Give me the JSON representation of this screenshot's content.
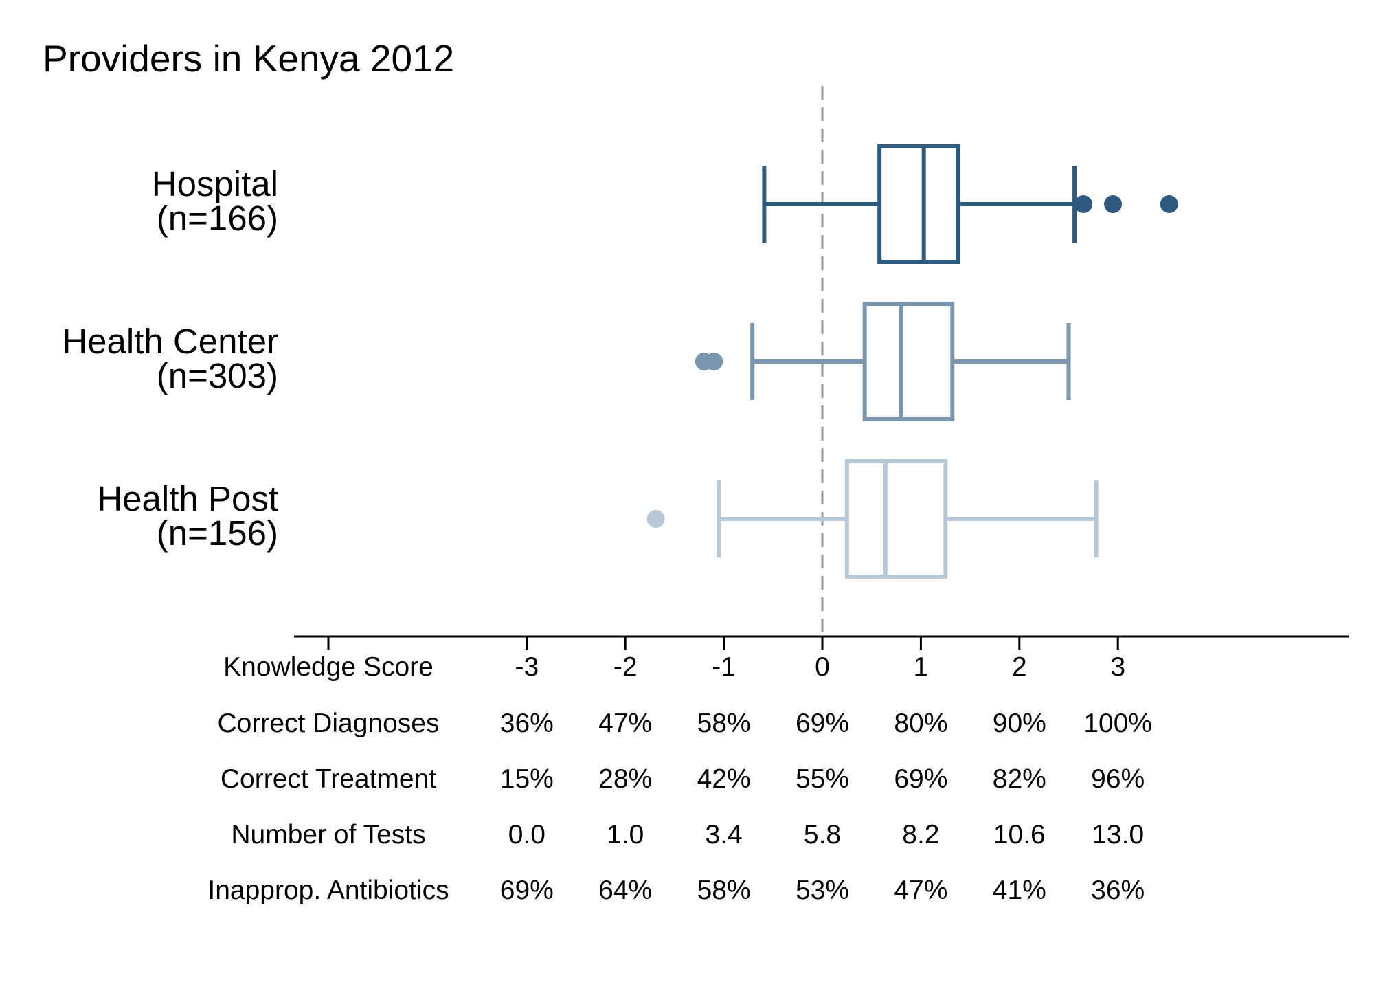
{
  "chart_data": {
    "type": "box",
    "title": "Providers in Kenya 2012",
    "xlim": [
      -5,
      5.4
    ],
    "reference_line": 0,
    "categories": [
      {
        "name": "Hospital",
        "n_label": "(n=166)",
        "color": "#2f5a80",
        "whisker_low": -0.59,
        "q1": 0.58,
        "median": 1.03,
        "q3": 1.38,
        "whisker_high": 2.56,
        "outliers": [
          2.65,
          2.95,
          3.52
        ]
      },
      {
        "name": "Health Center",
        "n_label": "(n=303)",
        "color": "#7a95ae",
        "whisker_low": -0.71,
        "q1": 0.43,
        "median": 0.8,
        "q3": 1.32,
        "whisker_high": 2.5,
        "outliers": [
          -1.2,
          -1.1
        ]
      },
      {
        "name": "Health Post",
        "n_label": "(n=156)",
        "color": "#b9c8d6",
        "whisker_low": -1.05,
        "q1": 0.25,
        "median": 0.64,
        "q3": 1.25,
        "whisker_high": 2.78,
        "outliers": [
          -1.69
        ]
      }
    ],
    "axis_table": {
      "positions": [
        -3,
        -2,
        -1,
        0,
        1,
        2,
        3
      ],
      "rows": [
        {
          "label": "Knowledge Score",
          "values": [
            "-3",
            "-2",
            "-1",
            "0",
            "1",
            "2",
            "3"
          ]
        },
        {
          "label": "Correct Diagnoses",
          "values": [
            "36%",
            "47%",
            "58%",
            "69%",
            "80%",
            "90%",
            "100%"
          ]
        },
        {
          "label": "Correct Treatment",
          "values": [
            "15%",
            "28%",
            "42%",
            "55%",
            "69%",
            "82%",
            "96%"
          ]
        },
        {
          "label": "Number of Tests",
          "values": [
            "0.0",
            "1.0",
            "3.4",
            "5.8",
            "8.2",
            "10.6",
            "13.0"
          ]
        },
        {
          "label": "Inapprop. Antibiotics",
          "values": [
            "69%",
            "64%",
            "58%",
            "53%",
            "47%",
            "41%",
            "36%"
          ]
        }
      ]
    },
    "colors": {
      "axis": "#000000",
      "reference_line": "#999999"
    }
  }
}
